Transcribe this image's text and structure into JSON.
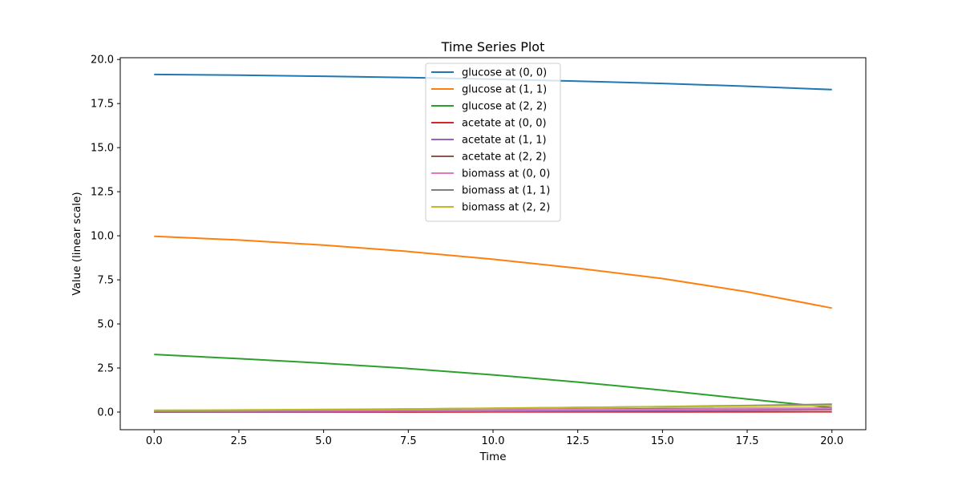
{
  "chart_data": {
    "type": "line",
    "title": "Time Series Plot",
    "xlabel": "Time",
    "ylabel": "Value (linear scale)",
    "xlim": [
      -1,
      21
    ],
    "ylim": [
      -1,
      20.1
    ],
    "xticks": [
      0,
      2.5,
      5,
      7.5,
      10,
      12.5,
      15,
      17.5,
      20
    ],
    "xtick_labels": [
      "0.0",
      "2.5",
      "5.0",
      "7.5",
      "10.0",
      "12.5",
      "15.0",
      "17.5",
      "20.0"
    ],
    "yticks": [
      0,
      2.5,
      5,
      7.5,
      10,
      12.5,
      15,
      17.5,
      20
    ],
    "ytick_labels": [
      "0.0",
      "2.5",
      "5.0",
      "7.5",
      "10.0",
      "12.5",
      "15.0",
      "17.5",
      "20.0"
    ],
    "grid": false,
    "legend_position": "top-center",
    "x": [
      0,
      2.5,
      5,
      7.5,
      10,
      12.5,
      15,
      17.5,
      20
    ],
    "series": [
      {
        "name": "glucose at (0, 0)",
        "color": "#1f77b4",
        "values": [
          19.15,
          19.11,
          19.05,
          18.97,
          18.88,
          18.77,
          18.64,
          18.48,
          18.29
        ]
      },
      {
        "name": "glucose at (1, 1)",
        "color": "#ff7f0e",
        "values": [
          9.97,
          9.76,
          9.47,
          9.11,
          8.67,
          8.16,
          7.57,
          6.82,
          5.9
        ]
      },
      {
        "name": "glucose at (2, 2)",
        "color": "#2ca02c",
        "values": [
          3.27,
          3.03,
          2.77,
          2.47,
          2.11,
          1.7,
          1.24,
          0.74,
          0.25
        ]
      },
      {
        "name": "acetate at (0, 0)",
        "color": "#d62728",
        "values": [
          0.0,
          0.0,
          0.0,
          0.0,
          0.01,
          0.01,
          0.01,
          0.01,
          0.02
        ]
      },
      {
        "name": "acetate at (1, 1)",
        "color": "#9467bd",
        "values": [
          0.0,
          0.01,
          0.02,
          0.03,
          0.05,
          0.07,
          0.09,
          0.11,
          0.14
        ]
      },
      {
        "name": "acetate at (2, 2)",
        "color": "#8c564b",
        "values": [
          0.02,
          0.04,
          0.07,
          0.1,
          0.13,
          0.16,
          0.19,
          0.21,
          0.22
        ]
      },
      {
        "name": "biomass at (0, 0)",
        "color": "#e377c2",
        "values": [
          0.05,
          0.06,
          0.08,
          0.1,
          0.12,
          0.14,
          0.16,
          0.19,
          0.22
        ]
      },
      {
        "name": "biomass at (1, 1)",
        "color": "#7f7f7f",
        "values": [
          0.08,
          0.1,
          0.13,
          0.17,
          0.21,
          0.26,
          0.31,
          0.37,
          0.44
        ]
      },
      {
        "name": "biomass at (2, 2)",
        "color": "#bcbd22",
        "values": [
          0.1,
          0.12,
          0.15,
          0.18,
          0.22,
          0.26,
          0.3,
          0.34,
          0.38
        ]
      }
    ]
  }
}
